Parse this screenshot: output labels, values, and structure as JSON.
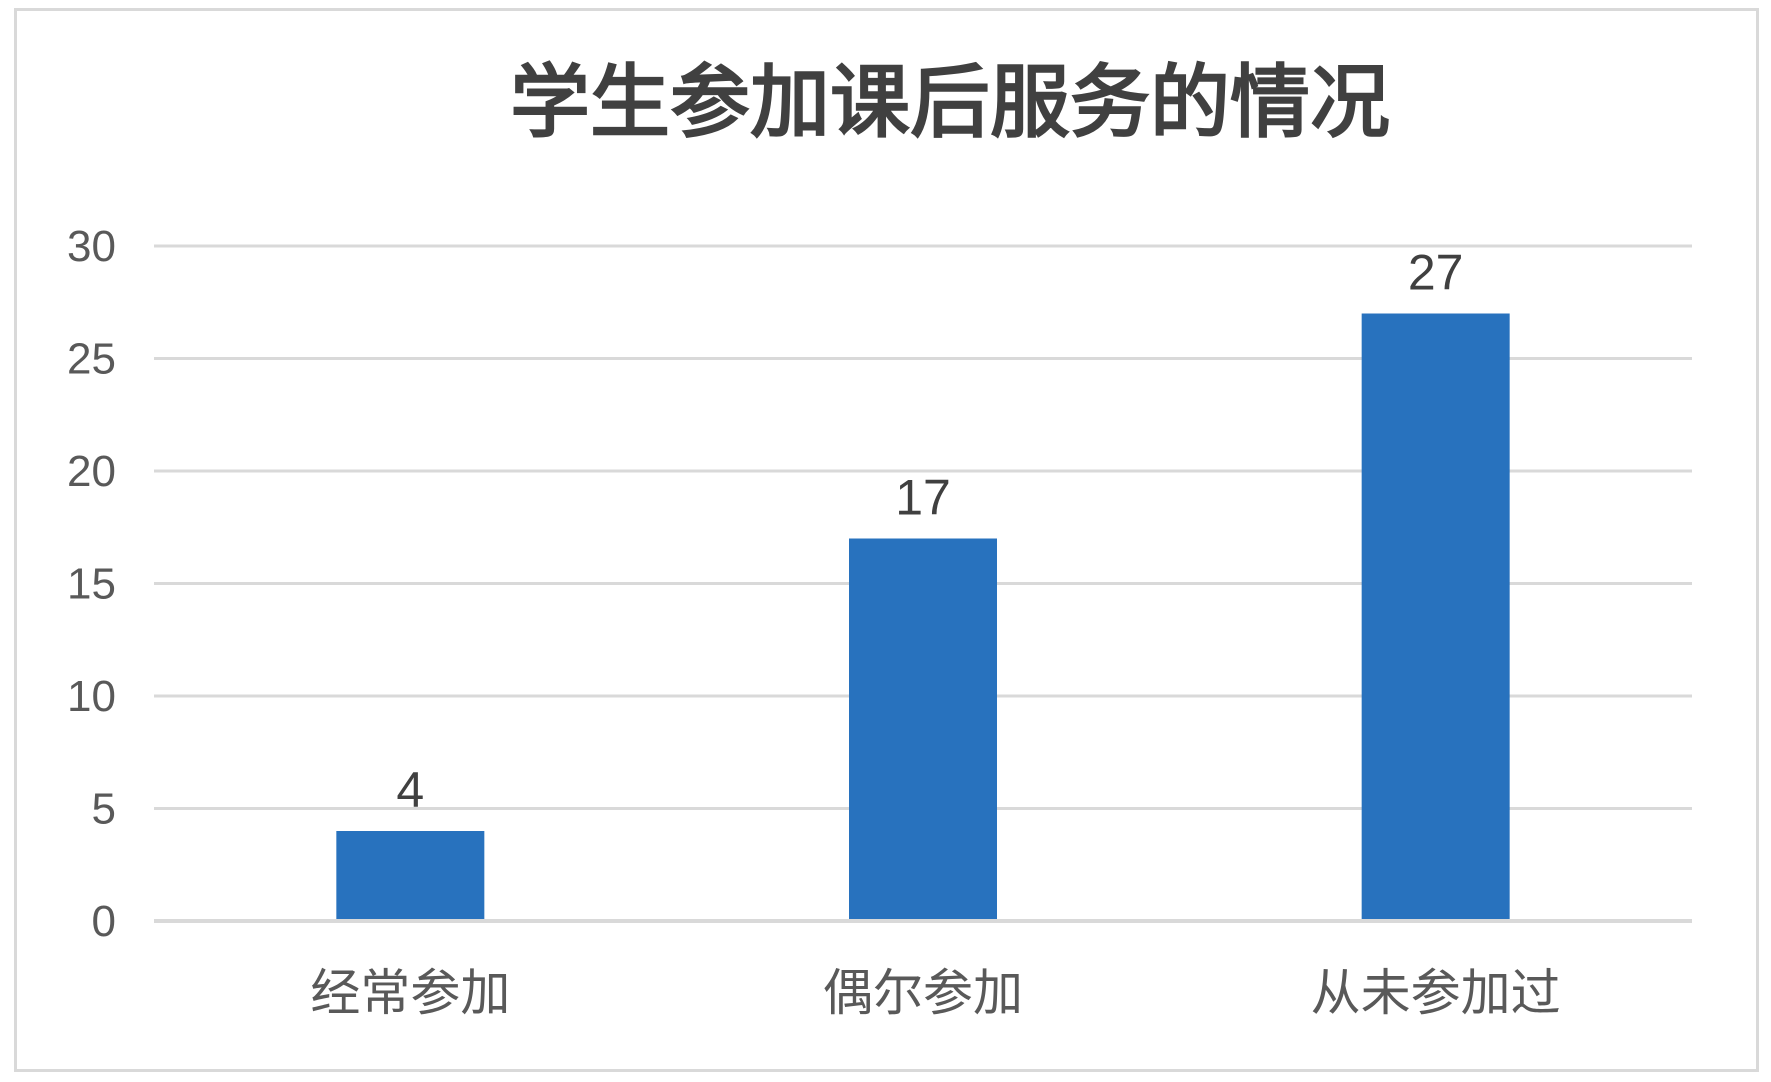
{
  "chart_data": {
    "type": "bar",
    "title": "学生参加课后服务的情况",
    "categories": [
      "经常参加",
      "偶尔参加",
      "从未参加过"
    ],
    "values": [
      4,
      17,
      27
    ],
    "data_labels": [
      "4",
      "17",
      "27"
    ],
    "ylim": [
      0,
      30
    ],
    "yticks": [
      0,
      5,
      10,
      15,
      20,
      25,
      30
    ],
    "ytick_labels": [
      "0",
      "5",
      "10",
      "15",
      "20",
      "25",
      "30"
    ],
    "xlabel": "",
    "ylabel": "",
    "grid": true,
    "legend": "none",
    "colors": {
      "bar": "#2872BE",
      "grid": "#d9d9d9",
      "axis": "#d9d9d9",
      "title": "#404040",
      "text": "#595959"
    }
  }
}
